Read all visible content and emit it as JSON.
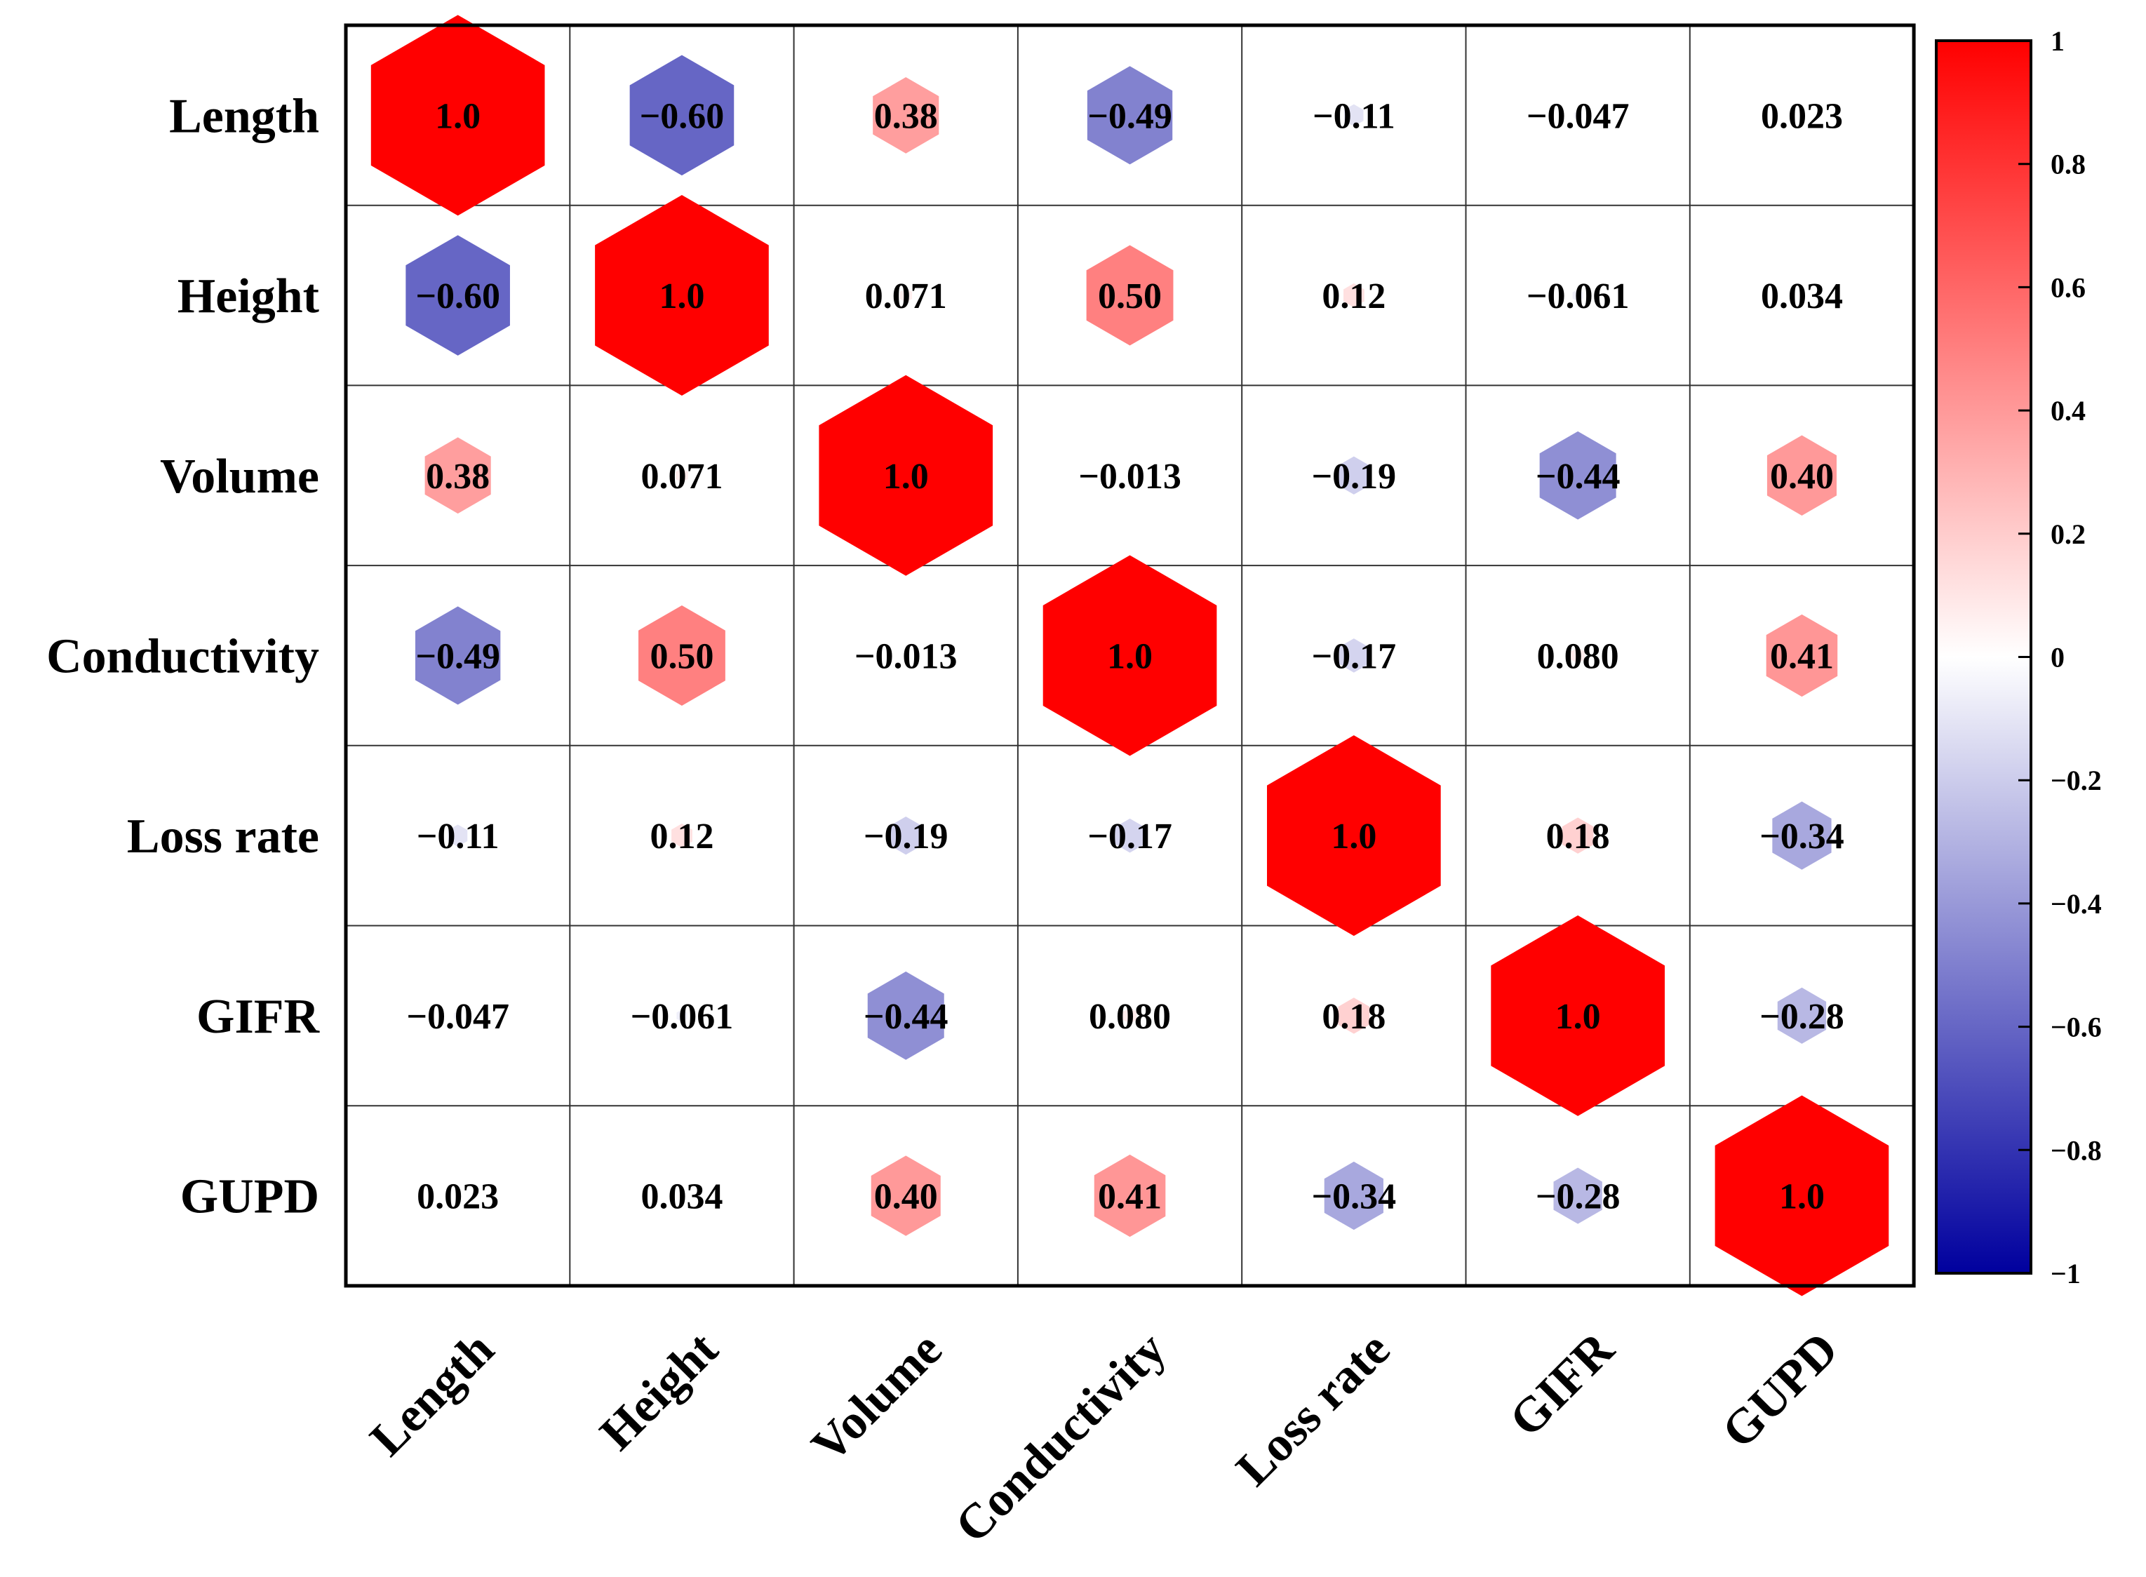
{
  "chart_data": {
    "type": "heatmap",
    "title": "",
    "variables": [
      "Length",
      "Height",
      "Volume",
      "Conductivity",
      "Loss rate",
      "GIFR",
      "GUPD"
    ],
    "labels": [
      [
        "1.0",
        "−0.60",
        "0.38",
        "−0.49",
        "−0.11",
        "−0.047",
        "0.023"
      ],
      [
        "−0.60",
        "1.0",
        "0.071",
        "0.50",
        "0.12",
        "−0.061",
        "0.034"
      ],
      [
        "0.38",
        "0.071",
        "1.0",
        "−0.013",
        "−0.19",
        "−0.44",
        "0.40"
      ],
      [
        "−0.49",
        "0.50",
        "−0.013",
        "1.0",
        "−0.17",
        "0.080",
        "0.41"
      ],
      [
        "−0.11",
        "0.12",
        "−0.19",
        "−0.17",
        "1.0",
        "0.18",
        "−0.34"
      ],
      [
        "−0.047",
        "−0.061",
        "−0.44",
        "0.080",
        "0.18",
        "1.0",
        "−0.28"
      ],
      [
        "0.023",
        "0.034",
        "0.40",
        "0.41",
        "−0.34",
        "−0.28",
        "1.0"
      ]
    ],
    "values": [
      [
        1.0,
        -0.6,
        0.38,
        -0.49,
        -0.11,
        -0.047,
        0.023
      ],
      [
        -0.6,
        1.0,
        0.071,
        0.5,
        0.12,
        -0.061,
        0.034
      ],
      [
        0.38,
        0.071,
        1.0,
        -0.013,
        -0.19,
        -0.44,
        0.4
      ],
      [
        -0.49,
        0.5,
        -0.013,
        1.0,
        -0.17,
        0.08,
        0.41
      ],
      [
        -0.11,
        0.12,
        -0.19,
        -0.17,
        1.0,
        0.18,
        -0.34
      ],
      [
        -0.047,
        -0.061,
        -0.44,
        0.08,
        0.18,
        1.0,
        -0.28
      ],
      [
        0.023,
        0.034,
        0.4,
        0.41,
        -0.34,
        -0.28,
        1.0
      ]
    ],
    "marker": "hexagon",
    "marker_size_scales_with": "absolute correlation",
    "colorbar": {
      "range": [
        -1,
        1
      ],
      "ticks": [
        1,
        0.8,
        0.6,
        0.4,
        0.2,
        0,
        -0.2,
        -0.4,
        -0.6,
        -0.8,
        -1
      ],
      "tick_labels": [
        "1",
        "0.8",
        "0.6",
        "0.4",
        "0.2",
        "0",
        "−0.2",
        "−0.4",
        "−0.6",
        "−0.8",
        "−1"
      ],
      "colors": {
        "low": "#00009e",
        "mid": "#ffffff",
        "high": "#ff0000"
      }
    },
    "legend": "right"
  }
}
